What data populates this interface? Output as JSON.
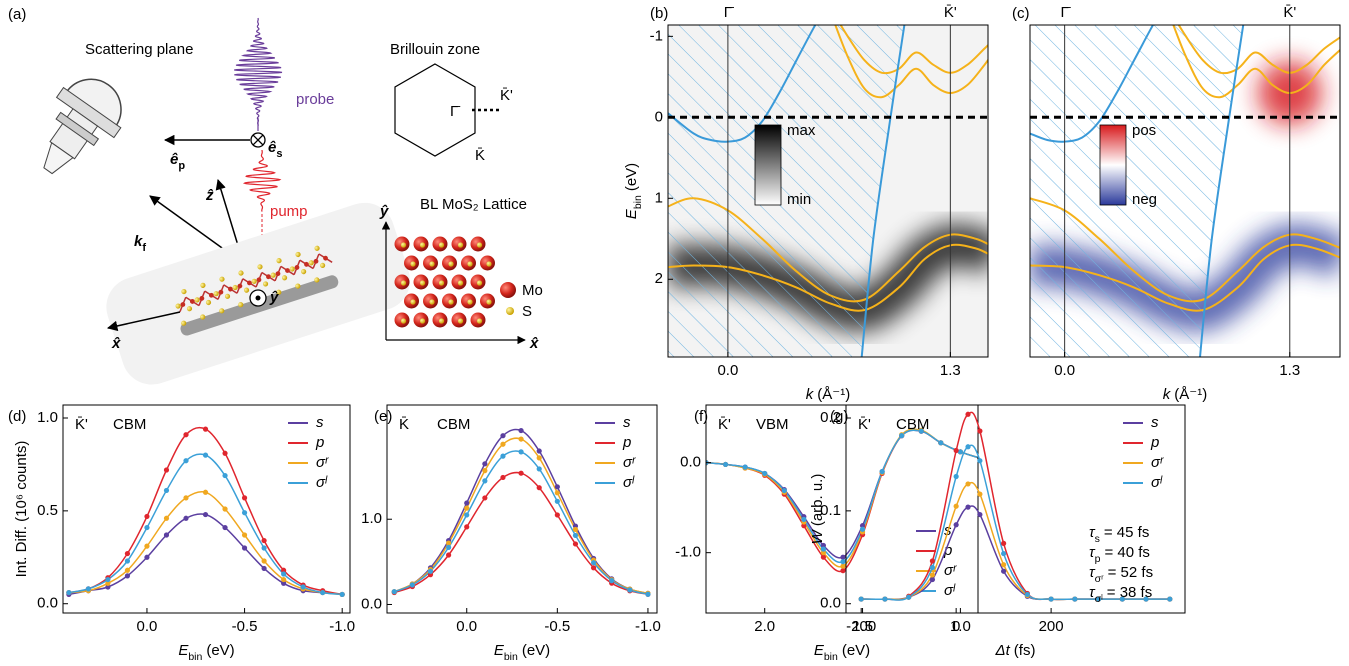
{
  "diagram": {
    "panel": "(a)",
    "scattering_plane": "Scattering plane",
    "probe": "probe",
    "pump": "pump",
    "e_p": {
      "symbol": "ê",
      "subscript": "p"
    },
    "e_s": {
      "symbol": "ê",
      "subscript": "s"
    },
    "z": "ẑ",
    "k_f": {
      "symbol": "k",
      "subscript": "f"
    },
    "x": "x̂",
    "y": "ŷ",
    "brillouin_zone": "Brillouin zone",
    "gamma": "Γ̄",
    "k_prime": "K̄'",
    "k": "K̄",
    "lattice_title": "BL MoS₂ Lattice",
    "lattice_y": "ŷ",
    "lattice_x": "x̂",
    "mo": "Mo",
    "s": "S"
  },
  "chart_data": [
    {
      "type": "band",
      "panel": "(b)",
      "x_label": {
        "symbol": "k",
        "unit": "(Å⁻¹)"
      },
      "y_label": {
        "symbol": "E",
        "subscript": "bin",
        "unit": "(eV)"
      },
      "xlim": [
        -0.35,
        1.52
      ],
      "ylim": [
        2.96,
        -1.14
      ],
      "xticks": [
        {
          "value": 0,
          "label": "0.0"
        },
        1.3
      ],
      "yticks": [
        -1,
        0,
        1,
        2
      ],
      "top_ticks": [
        {
          "value": 0,
          "label": "Γ̄"
        },
        {
          "value": 1.3,
          "label": "K̄'"
        }
      ],
      "reference_line": 0,
      "colorbar": {
        "top": "max",
        "bottom": "min",
        "colors": [
          "#000000",
          "#ffffff"
        ]
      },
      "series": [
        {
          "color": "#f5b21a",
          "x": [
            -0.35,
            -0.2,
            0,
            0.2,
            0.4,
            0.6,
            0.8,
            1.0,
            1.15,
            1.3,
            1.45,
            1.55
          ],
          "values": [
            1.1,
            1.0,
            1.15,
            1.5,
            1.9,
            2.2,
            2.25,
            1.9,
            1.6,
            1.45,
            1.5,
            1.6
          ]
        },
        {
          "color": "#f5b21a",
          "x": [
            -0.35,
            -0.2,
            0,
            0.2,
            0.4,
            0.6,
            0.8,
            1.0,
            1.15,
            1.3,
            1.45,
            1.55
          ],
          "values": [
            1.85,
            1.83,
            1.85,
            1.95,
            2.1,
            2.3,
            2.38,
            2.1,
            1.75,
            1.58,
            1.62,
            1.72
          ]
        },
        {
          "color": "#f5b21a",
          "x": [
            0.6,
            0.7,
            0.8,
            0.9,
            1.0,
            1.1,
            1.2,
            1.3,
            1.4,
            1.5,
            1.55
          ],
          "values": [
            -1.3,
            -0.75,
            -0.35,
            -0.25,
            -0.4,
            -0.6,
            -0.4,
            -0.3,
            -0.4,
            -0.65,
            -0.8
          ]
        },
        {
          "color": "#f5b21a",
          "x": [
            0.6,
            0.7,
            0.8,
            0.9,
            1.0,
            1.1,
            1.2,
            1.3,
            1.4,
            1.5,
            1.55
          ],
          "values": [
            -1.35,
            -1.0,
            -0.7,
            -0.55,
            -0.6,
            -0.8,
            -0.65,
            -0.55,
            -0.65,
            -0.85,
            -0.95
          ]
        },
        {
          "color": "#3a9ad9",
          "x": [
            -0.35,
            -0.2,
            -0.1,
            0,
            0.1,
            0.2,
            0.3,
            0.4,
            0.5,
            0.58
          ],
          "values": [
            -0.05,
            0.2,
            0.28,
            0.3,
            0.25,
            0.05,
            -0.3,
            -0.7,
            -1.1,
            -1.4
          ]
        },
        {
          "color": "#3a9ad9",
          "x": [
            1.05,
            0.95,
            0.85,
            0.78
          ],
          "values": [
            -1.4,
            0,
            1.5,
            3.0
          ]
        }
      ]
    },
    {
      "type": "band",
      "panel": "(c)",
      "x_label": {
        "symbol": "k",
        "unit": "(Å⁻¹)"
      },
      "xlim": [
        -0.2,
        1.59
      ],
      "ylim": [
        2.96,
        -1.14
      ],
      "xticks": [
        {
          "value": 0,
          "label": "0.0"
        },
        1.3
      ],
      "top_ticks": [
        {
          "value": 0,
          "label": "Γ̄"
        },
        {
          "value": 1.3,
          "label": "K̄'"
        }
      ],
      "reference_line": 0,
      "hotspot": {
        "x": 1.3,
        "y": -0.3
      },
      "colorbar": {
        "top": "pos",
        "bottom": "neg",
        "colors": [
          "#d7191c",
          "#ffffff",
          "#2b3a9b"
        ]
      },
      "series": [
        {
          "color": "#f5b21a",
          "x": [
            -0.2,
            0,
            0.2,
            0.4,
            0.6,
            0.8,
            1.0,
            1.15,
            1.3,
            1.45,
            1.6
          ],
          "values": [
            1.0,
            1.15,
            1.5,
            1.9,
            2.2,
            2.25,
            1.9,
            1.6,
            1.45,
            1.5,
            1.62
          ]
        },
        {
          "color": "#f5b21a",
          "x": [
            -0.2,
            0,
            0.2,
            0.4,
            0.6,
            0.8,
            1.0,
            1.15,
            1.3,
            1.45,
            1.6
          ],
          "values": [
            1.83,
            1.85,
            1.95,
            2.1,
            2.3,
            2.38,
            2.1,
            1.75,
            1.58,
            1.62,
            1.74
          ]
        },
        {
          "color": "#f5b21a",
          "x": [
            0.6,
            0.7,
            0.8,
            0.9,
            1.0,
            1.1,
            1.2,
            1.3,
            1.4,
            1.5,
            1.6
          ],
          "values": [
            -1.3,
            -0.75,
            -0.35,
            -0.25,
            -0.4,
            -0.6,
            -0.4,
            -0.3,
            -0.4,
            -0.65,
            -0.85
          ]
        },
        {
          "color": "#f5b21a",
          "x": [
            0.6,
            0.7,
            0.8,
            0.9,
            1.0,
            1.1,
            1.2,
            1.3,
            1.4,
            1.5,
            1.6
          ],
          "values": [
            -1.35,
            -1.0,
            -0.7,
            -0.55,
            -0.6,
            -0.8,
            -0.65,
            -0.55,
            -0.65,
            -0.85,
            -1.0
          ]
        },
        {
          "color": "#3a9ad9",
          "x": [
            -0.2,
            -0.1,
            0,
            0.1,
            0.2,
            0.3,
            0.4,
            0.5,
            0.58
          ],
          "values": [
            0.2,
            0.28,
            0.3,
            0.25,
            0.05,
            -0.3,
            -0.7,
            -1.1,
            -1.4
          ]
        },
        {
          "color": "#3a9ad9",
          "x": [
            1.05,
            0.95,
            0.85,
            0.78
          ],
          "values": [
            -1.4,
            0,
            1.5,
            3.0
          ]
        }
      ]
    },
    {
      "type": "line",
      "panel": "(d)",
      "legend": "upper right",
      "annotations": [
        "K̄'",
        "CBM"
      ],
      "x_label": {
        "symbol": "E",
        "subscript": "bin",
        "unit": "(eV)"
      },
      "y_label": "Int. Diff. (10⁶ counts)",
      "xlim": [
        0.43,
        -1.04
      ],
      "ylim": [
        -0.05,
        1.07
      ],
      "xticks": [
        {
          "value": 0,
          "label": "0.0"
        },
        -0.5,
        {
          "value": -1,
          "label": "-1.0"
        }
      ],
      "yticks": [
        {
          "value": 0,
          "label": "0.0"
        },
        0.5,
        {
          "value": 1,
          "label": "1.0"
        }
      ],
      "x": [
        0.4,
        0.3,
        0.2,
        0.1,
        0,
        -0.1,
        -0.2,
        -0.3,
        -0.4,
        -0.5,
        -0.6,
        -0.7,
        -0.8,
        -0.9,
        -1.0
      ],
      "series": [
        {
          "name": "s",
          "color": "#5b3fa0",
          "values": [
            0.05,
            0.07,
            0.09,
            0.15,
            0.25,
            0.37,
            0.46,
            0.48,
            0.41,
            0.3,
            0.19,
            0.11,
            0.07,
            0.06,
            0.05
          ]
        },
        {
          "name": "p",
          "color": "#e0262e",
          "values": [
            0.06,
            0.08,
            0.14,
            0.27,
            0.47,
            0.72,
            0.91,
            0.94,
            0.81,
            0.57,
            0.34,
            0.18,
            0.1,
            0.07,
            0.05
          ]
        },
        {
          "name": "σʳ",
          "color": "#f0a820",
          "values": [
            0.06,
            0.07,
            0.11,
            0.18,
            0.31,
            0.46,
            0.57,
            0.6,
            0.51,
            0.37,
            0.23,
            0.13,
            0.08,
            0.06,
            0.05
          ]
        },
        {
          "name": "σˡ",
          "color": "#3ba0d8",
          "values": [
            0.06,
            0.08,
            0.13,
            0.23,
            0.41,
            0.61,
            0.77,
            0.8,
            0.69,
            0.49,
            0.3,
            0.16,
            0.09,
            0.06,
            0.05
          ]
        }
      ]
    },
    {
      "type": "line",
      "panel": "(e)",
      "legend": "upper right",
      "annotations": [
        "K̄",
        "CBM"
      ],
      "x_label": {
        "symbol": "E",
        "subscript": "bin",
        "unit": "(eV)"
      },
      "xlim": [
        0.44,
        -1.05
      ],
      "ylim": [
        -0.1,
        2.34
      ],
      "xticks": [
        {
          "value": 0,
          "label": "0.0"
        },
        -0.5,
        {
          "value": -1,
          "label": "-1.0"
        }
      ],
      "yticks": [
        {
          "value": 0,
          "label": "0.0"
        },
        {
          "value": 1,
          "label": "1.0"
        }
      ],
      "x": [
        0.4,
        0.3,
        0.2,
        0.1,
        0,
        -0.1,
        -0.2,
        -0.3,
        -0.4,
        -0.5,
        -0.6,
        -0.7,
        -0.8,
        -0.9,
        -1.0
      ],
      "series": [
        {
          "name": "s",
          "color": "#5b3fa0",
          "values": [
            0.15,
            0.24,
            0.43,
            0.75,
            1.19,
            1.65,
            1.98,
            2.04,
            1.8,
            1.38,
            0.92,
            0.54,
            0.3,
            0.18,
            0.13
          ]
        },
        {
          "name": "p",
          "color": "#e0262e",
          "values": [
            0.14,
            0.21,
            0.35,
            0.58,
            0.91,
            1.25,
            1.49,
            1.54,
            1.37,
            1.05,
            0.71,
            0.43,
            0.25,
            0.16,
            0.12
          ]
        },
        {
          "name": "σʳ",
          "color": "#f0a820",
          "values": [
            0.15,
            0.24,
            0.41,
            0.72,
            1.13,
            1.57,
            1.88,
            1.94,
            1.72,
            1.31,
            0.88,
            0.52,
            0.29,
            0.18,
            0.13
          ]
        },
        {
          "name": "σˡ",
          "color": "#3ba0d8",
          "values": [
            0.15,
            0.23,
            0.39,
            0.67,
            1.05,
            1.45,
            1.74,
            1.79,
            1.59,
            1.21,
            0.81,
            0.49,
            0.28,
            0.17,
            0.12
          ]
        }
      ]
    },
    {
      "type": "line",
      "panel": "(f)",
      "legend": "lower right",
      "annotations": [
        "K̄'",
        "VBM"
      ],
      "x_label": {
        "symbol": "E",
        "subscript": "bin",
        "unit": "(eV)"
      },
      "xlim": [
        2.3,
        0.91
      ],
      "ylim": [
        -1.67,
        0.64
      ],
      "xticks": [
        {
          "value": 2,
          "label": "2.0"
        },
        1.5,
        {
          "value": 1,
          "label": "1.0"
        }
      ],
      "yticks": [
        {
          "value": 0,
          "label": "0.0"
        },
        {
          "value": -1,
          "label": "-1.0"
        }
      ],
      "x": [
        2.3,
        2.2,
        2.1,
        2.0,
        1.9,
        1.8,
        1.7,
        1.6,
        1.5,
        1.4,
        1.3,
        1.2,
        1.1,
        1.0,
        0.9
      ],
      "series": [
        {
          "name": "s",
          "color": "#5b3fa0",
          "values": [
            0.0,
            -0.02,
            -0.05,
            -0.12,
            -0.3,
            -0.6,
            -0.92,
            -1.05,
            -0.7,
            -0.1,
            0.3,
            0.35,
            0.22,
            0.12,
            0.05
          ]
        },
        {
          "name": "p",
          "color": "#e0262e",
          "values": [
            0.0,
            -0.02,
            -0.06,
            -0.14,
            -0.35,
            -0.7,
            -1.05,
            -1.2,
            -0.8,
            -0.12,
            0.3,
            0.35,
            0.22,
            0.12,
            0.05
          ]
        },
        {
          "name": "σʳ",
          "color": "#f0a820",
          "values": [
            0.0,
            -0.02,
            -0.06,
            -0.13,
            -0.33,
            -0.66,
            -1.0,
            -1.15,
            -0.77,
            -0.11,
            0.31,
            0.36,
            0.22,
            0.12,
            0.05
          ]
        },
        {
          "name": "σˡ",
          "color": "#3ba0d8",
          "values": [
            0.0,
            -0.02,
            -0.05,
            -0.12,
            -0.31,
            -0.63,
            -0.96,
            -1.1,
            -0.74,
            -0.1,
            0.3,
            0.35,
            0.22,
            0.12,
            0.05
          ]
        }
      ]
    },
    {
      "type": "line",
      "panel": "(g)",
      "legend": "upper right",
      "annotations": [
        "K̄'",
        "CBM"
      ],
      "tau_labels": [
        {
          "symbol": "τ",
          "subscript": "s",
          "text": "= 45 fs"
        },
        {
          "symbol": "τ",
          "subscript": "p",
          "text": "= 40 fs"
        },
        {
          "symbol": "τ",
          "subscript": "σʳ",
          "text": "= 52 fs"
        },
        {
          "symbol": "τ",
          "subscript": "σˡ",
          "text": "= 38 fs"
        }
      ],
      "x_label": {
        "symbol": "Δt",
        "unit": "(fs)"
      },
      "y_label": {
        "symbol": "W",
        "unit": "(arb. u.)"
      },
      "xlim": [
        -232,
        482
      ],
      "ylim": [
        -0.01,
        0.214
      ],
      "xticks": [
        -200,
        0,
        200
      ],
      "yticks": [
        {
          "value": 0,
          "label": "0.0"
        },
        0.1,
        0.2
      ],
      "x": [
        -200,
        -150,
        -100,
        -50,
        0,
        25,
        50,
        100,
        150,
        200,
        250,
        300,
        350,
        400,
        450
      ],
      "series": [
        {
          "name": "s",
          "color": "#5b3fa0",
          "values": [
            0.005,
            0.005,
            0.007,
            0.026,
            0.085,
            0.104,
            0.096,
            0.035,
            0.008,
            0.005,
            0.005,
            0.005,
            0.005,
            0.005,
            0.005
          ]
        },
        {
          "name": "p",
          "color": "#e0262e",
          "values": [
            0.005,
            0.005,
            0.008,
            0.046,
            0.165,
            0.204,
            0.186,
            0.065,
            0.011,
            0.005,
            0.005,
            0.005,
            0.005,
            0.005,
            0.005
          ]
        },
        {
          "name": "σʳ",
          "color": "#f0a820",
          "values": [
            0.005,
            0.005,
            0.007,
            0.031,
            0.105,
            0.129,
            0.118,
            0.042,
            0.009,
            0.005,
            0.005,
            0.005,
            0.005,
            0.005,
            0.005
          ]
        },
        {
          "name": "σˡ",
          "color": "#3ba0d8",
          "values": [
            0.005,
            0.005,
            0.007,
            0.039,
            0.137,
            0.169,
            0.154,
            0.054,
            0.01,
            0.005,
            0.005,
            0.005,
            0.005,
            0.005,
            0.005
          ]
        }
      ]
    }
  ]
}
